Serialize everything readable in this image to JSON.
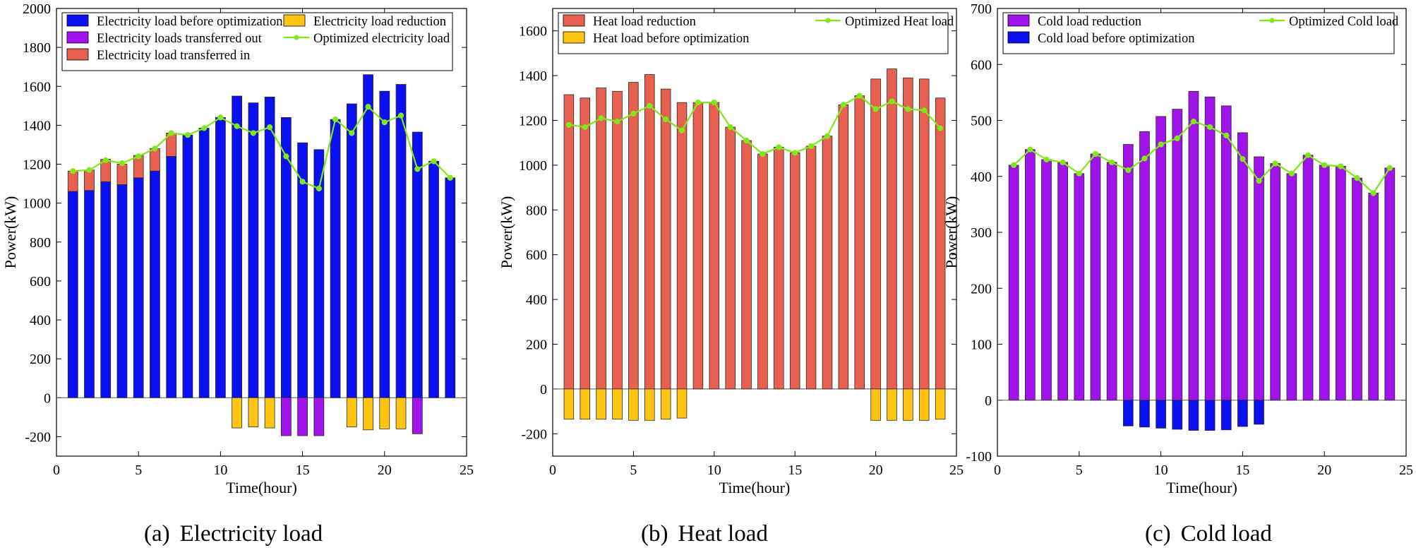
{
  "colors": {
    "blue": "#0b10f0",
    "red": "#e8604f",
    "yellow": "#ffc512",
    "purple": "#a013ea",
    "green": "#7fe81a",
    "bar_edge": "#2a2a2a"
  },
  "captions": [
    {
      "letter": "(a)",
      "text": "Electricity load"
    },
    {
      "letter": "(b)",
      "text": "Heat load"
    },
    {
      "letter": "(c)",
      "text": "Cold load"
    }
  ],
  "chart_data": [
    {
      "type": "bar",
      "caption": "Electricity load",
      "xlabel": "Time(hour)",
      "ylabel": "Power(kW)",
      "xlim": [
        0,
        25
      ],
      "ylim": [
        -300,
        2000
      ],
      "xticks": [
        0,
        5,
        10,
        15,
        20,
        25
      ],
      "yticks": [
        -200,
        0,
        200,
        400,
        600,
        800,
        1000,
        1200,
        1400,
        1600,
        1800,
        2000
      ],
      "x": [
        1,
        2,
        3,
        4,
        5,
        6,
        7,
        8,
        9,
        10,
        11,
        12,
        13,
        14,
        15,
        16,
        17,
        18,
        19,
        20,
        21,
        22,
        23,
        24
      ],
      "legend": [
        "Electricity load before optimization",
        "Electricity load reduction",
        "Electricity loads transferred out",
        "Optimized electricity load",
        "Electricity load transferred in"
      ],
      "series": [
        {
          "name": "Electricity load before optimization",
          "kind": "bar",
          "color": "blue",
          "values": [
            1060,
            1065,
            1110,
            1095,
            1130,
            1165,
            1240,
            1350,
            1385,
            1440,
            1550,
            1515,
            1545,
            1440,
            1310,
            1275,
            1430,
            1510,
            1660,
            1575,
            1610,
            1365,
            1215,
            1130
          ]
        },
        {
          "name": "Electricity load transferred in",
          "kind": "bar",
          "color": "red",
          "values": [
            105,
            105,
            115,
            105,
            115,
            115,
            120,
            0,
            0,
            0,
            0,
            0,
            0,
            0,
            0,
            0,
            0,
            0,
            0,
            0,
            0,
            0,
            0,
            0
          ]
        },
        {
          "name": "Electricity load reduction",
          "kind": "bar",
          "color": "yellow",
          "values": [
            0,
            0,
            0,
            0,
            0,
            0,
            0,
            0,
            0,
            0,
            -155,
            -150,
            -155,
            0,
            0,
            0,
            0,
            -150,
            -165,
            -160,
            -160,
            0,
            0,
            0
          ]
        },
        {
          "name": "Electricity loads transferred out",
          "kind": "bar",
          "color": "purple",
          "values": [
            0,
            0,
            0,
            0,
            0,
            0,
            0,
            0,
            0,
            0,
            0,
            0,
            0,
            -195,
            -195,
            -195,
            0,
            0,
            0,
            0,
            0,
            -185,
            0,
            0
          ]
        },
        {
          "name": "Optimized electricity load",
          "kind": "line",
          "color": "green",
          "values": [
            1165,
            1170,
            1220,
            1205,
            1240,
            1280,
            1360,
            1350,
            1385,
            1440,
            1395,
            1360,
            1390,
            1240,
            1110,
            1075,
            1430,
            1360,
            1495,
            1415,
            1450,
            1175,
            1215,
            1130
          ]
        }
      ]
    },
    {
      "type": "bar",
      "caption": "Heat load",
      "xlabel": "Time(hour)",
      "ylabel": "Power(kW)",
      "xlim": [
        0,
        25
      ],
      "ylim": [
        -300,
        1700
      ],
      "xticks": [
        0,
        5,
        10,
        15,
        20,
        25
      ],
      "yticks": [
        -200,
        0,
        200,
        400,
        600,
        800,
        1000,
        1200,
        1400,
        1600
      ],
      "x": [
        1,
        2,
        3,
        4,
        5,
        6,
        7,
        8,
        9,
        10,
        11,
        12,
        13,
        14,
        15,
        16,
        17,
        18,
        19,
        20,
        21,
        22,
        23,
        24
      ],
      "legend": [
        "Heat load reduction",
        "Optimized Heat load",
        "Heat load before optimization"
      ],
      "series": [
        {
          "name": "Heat load reduction",
          "kind": "bar",
          "color": "red",
          "values": [
            1315,
            1300,
            1345,
            1330,
            1370,
            1405,
            1340,
            1280,
            1280,
            1280,
            1170,
            1110,
            1050,
            1080,
            1055,
            1085,
            1130,
            1270,
            1310,
            1385,
            1430,
            1390,
            1385,
            1300
          ]
        },
        {
          "name": "Heat load before optimization",
          "kind": "bar",
          "color": "yellow",
          "values": [
            -135,
            -135,
            -135,
            -135,
            -140,
            -140,
            -135,
            -130,
            0,
            0,
            0,
            0,
            0,
            0,
            0,
            0,
            0,
            0,
            0,
            -140,
            -140,
            -140,
            -140,
            -135
          ]
        },
        {
          "name": "Optimized Heat load",
          "kind": "line",
          "color": "green",
          "values": [
            1180,
            1170,
            1210,
            1195,
            1230,
            1265,
            1205,
            1155,
            1280,
            1280,
            1170,
            1110,
            1050,
            1080,
            1055,
            1085,
            1130,
            1270,
            1310,
            1250,
            1285,
            1250,
            1245,
            1165
          ]
        }
      ]
    },
    {
      "type": "bar",
      "caption": "Cold load",
      "xlabel": "Time(hour)",
      "ylabel": "Power(kW)",
      "xlim": [
        0,
        25
      ],
      "ylim": [
        -100,
        700
      ],
      "xticks": [
        0,
        5,
        10,
        15,
        20,
        25
      ],
      "yticks": [
        -100,
        0,
        100,
        200,
        300,
        400,
        500,
        600,
        700
      ],
      "x": [
        1,
        2,
        3,
        4,
        5,
        6,
        7,
        8,
        9,
        10,
        11,
        12,
        13,
        14,
        15,
        16,
        17,
        18,
        19,
        20,
        21,
        22,
        23,
        24
      ],
      "legend": [
        "Cold load reduction",
        "Optimized Cold load",
        "Cold load before optimization"
      ],
      "series": [
        {
          "name": "Cold load reduction",
          "kind": "bar",
          "color": "purple",
          "values": [
            420,
            448,
            430,
            425,
            405,
            440,
            425,
            457,
            480,
            507,
            520,
            552,
            542,
            526,
            478,
            435,
            423,
            405,
            438,
            420,
            418,
            397,
            370,
            415
          ]
        },
        {
          "name": "Cold load before optimization",
          "kind": "bar",
          "color": "blue",
          "values": [
            0,
            0,
            0,
            0,
            0,
            0,
            0,
            -46,
            -48,
            -50,
            -52,
            -54,
            -54,
            -53,
            -47,
            -43,
            0,
            0,
            0,
            0,
            0,
            0,
            0,
            0
          ]
        },
        {
          "name": "Optimized Cold load",
          "kind": "line",
          "color": "green",
          "values": [
            420,
            448,
            430,
            425,
            405,
            440,
            425,
            411,
            432,
            457,
            468,
            498,
            488,
            473,
            431,
            392,
            423,
            405,
            438,
            420,
            418,
            397,
            370,
            415
          ]
        }
      ]
    }
  ]
}
